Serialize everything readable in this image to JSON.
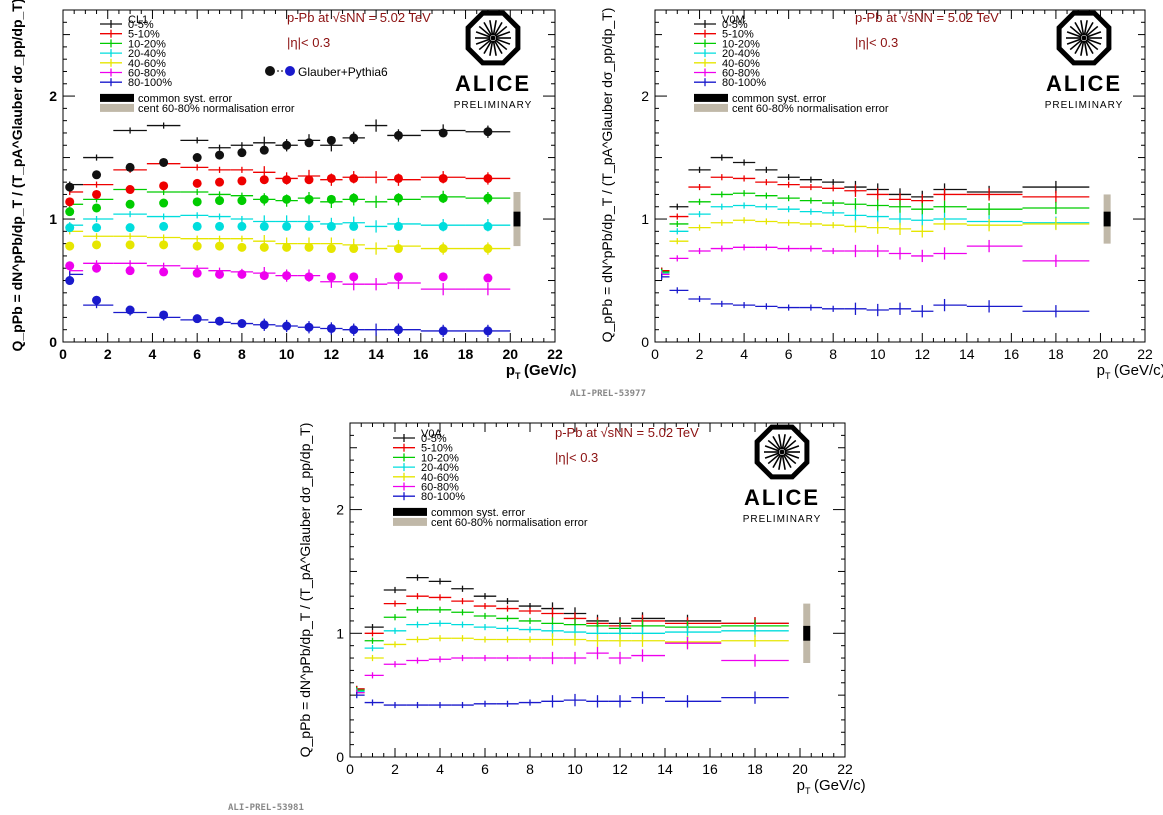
{
  "colors": {
    "0-5%": "#111111",
    "5-10%": "#ee0000",
    "10-20%": "#00cc00",
    "20-40%": "#00dddd",
    "40-60%": "#e6e600",
    "60-80%": "#ee00ee",
    "80-100%": "#1a1acc",
    "annot": "#8b1010",
    "syst_common": "#000000",
    "syst_norm": "#c0b8a8"
  },
  "prelim_ids": [
    "ALI-PREL-53977",
    "ALI-PREL-53981"
  ],
  "chart_data": [
    {
      "type": "scatter",
      "estimator": "CL1",
      "xlabel": "p_T (GeV/c)",
      "ylabel": "Q_pPb = dN^pPb/dp_T / (T_pA^Glauber dσ_pp/dp_T)",
      "xlim": [
        0,
        22
      ],
      "ylim": [
        0,
        2.7
      ],
      "xticks": [
        0,
        2,
        4,
        6,
        8,
        10,
        12,
        14,
        16,
        18,
        20,
        22
      ],
      "yticks": [
        0,
        1,
        2
      ],
      "annotations": [
        "p-Pb at √sNN = 5.02 TeV",
        "|η|< 0.3"
      ],
      "logo": {
        "text": "ALICE",
        "sub": "PRELIMINARY"
      },
      "glauber_label": "Glauber+Pythia6",
      "syst_labels": [
        "common syst. error",
        "cent 60-80% normalisation error"
      ],
      "syst_box": {
        "x": 20.3,
        "common": [
          0.94,
          1.06
        ],
        "norm": [
          0.78,
          1.22
        ]
      },
      "x": [
        0.3,
        1.5,
        3,
        4.5,
        6,
        7,
        8,
        9,
        10,
        11,
        12,
        13,
        14,
        15,
        17,
        19
      ],
      "series": [
        {
          "name": "0-5%",
          "values": [
            1.28,
            1.5,
            1.72,
            1.76,
            1.64,
            1.58,
            1.6,
            1.62,
            1.6,
            1.64,
            1.6,
            1.66,
            1.76,
            1.68,
            1.72,
            1.71
          ]
        },
        {
          "name": "5-10%",
          "values": [
            1.22,
            1.28,
            1.4,
            1.45,
            1.42,
            1.4,
            1.4,
            1.38,
            1.33,
            1.35,
            1.32,
            1.34,
            1.34,
            1.32,
            1.34,
            1.33
          ]
        },
        {
          "name": "10-20%",
          "values": [
            1.12,
            1.16,
            1.24,
            1.22,
            1.22,
            1.2,
            1.19,
            1.16,
            1.15,
            1.17,
            1.14,
            1.16,
            1.14,
            1.16,
            1.18,
            1.17
          ]
        },
        {
          "name": "20-40%",
          "values": [
            0.95,
            1.0,
            1.04,
            1.02,
            1.03,
            1.02,
            1.0,
            0.98,
            0.98,
            0.98,
            0.96,
            0.97,
            0.94,
            0.96,
            0.95,
            0.95
          ]
        },
        {
          "name": "40-60%",
          "values": [
            0.9,
            0.86,
            0.86,
            0.85,
            0.84,
            0.84,
            0.84,
            0.82,
            0.8,
            0.8,
            0.8,
            0.79,
            0.76,
            0.78,
            0.76,
            0.76
          ]
        },
        {
          "name": "60-80%",
          "values": [
            0.58,
            0.64,
            0.64,
            0.62,
            0.6,
            0.58,
            0.57,
            0.56,
            0.54,
            0.54,
            0.49,
            0.47,
            0.47,
            0.48,
            0.43,
            0.43
          ]
        },
        {
          "name": "80-100%",
          "values": [
            0.55,
            0.3,
            0.24,
            0.2,
            0.18,
            0.16,
            0.15,
            0.14,
            0.13,
            0.12,
            0.11,
            0.1,
            0.1,
            0.1,
            0.09,
            0.09
          ]
        }
      ],
      "glauber": {
        "x": [
          0.3,
          1.5,
          3,
          4.5,
          6,
          7,
          8,
          9,
          10,
          11,
          12,
          13,
          15,
          17,
          19
        ],
        "series": [
          {
            "name": "0-5%",
            "values": [
              1.26,
              1.36,
              1.42,
              1.46,
              1.5,
              1.52,
              1.54,
              1.56,
              1.6,
              1.62,
              1.64,
              1.66,
              1.68,
              1.7,
              1.71
            ]
          },
          {
            "name": "5-10%",
            "values": [
              1.14,
              1.2,
              1.24,
              1.27,
              1.29,
              1.3,
              1.31,
              1.32,
              1.32,
              1.32,
              1.33,
              1.33,
              1.33,
              1.33,
              1.33
            ]
          },
          {
            "name": "10-20%",
            "values": [
              1.06,
              1.09,
              1.12,
              1.13,
              1.14,
              1.15,
              1.15,
              1.16,
              1.16,
              1.16,
              1.16,
              1.17,
              1.17,
              1.17,
              1.17
            ]
          },
          {
            "name": "20-40%",
            "values": [
              0.93,
              0.93,
              0.93,
              0.94,
              0.94,
              0.94,
              0.94,
              0.94,
              0.94,
              0.94,
              0.94,
              0.94,
              0.94,
              0.94,
              0.94
            ]
          },
          {
            "name": "40-60%",
            "values": [
              0.78,
              0.79,
              0.79,
              0.79,
              0.78,
              0.78,
              0.77,
              0.77,
              0.77,
              0.77,
              0.76,
              0.76,
              0.76,
              0.76,
              0.76
            ]
          },
          {
            "name": "60-80%",
            "values": [
              0.62,
              0.6,
              0.58,
              0.57,
              0.56,
              0.55,
              0.55,
              0.54,
              0.54,
              0.53,
              0.53,
              0.53,
              0.53,
              0.53,
              0.52
            ]
          },
          {
            "name": "80-100%",
            "values": [
              0.5,
              0.34,
              0.26,
              0.22,
              0.19,
              0.17,
              0.15,
              0.14,
              0.13,
              0.12,
              0.11,
              0.1,
              0.1,
              0.09,
              0.09
            ]
          }
        ]
      }
    },
    {
      "type": "scatter",
      "estimator": "V0M",
      "xlabel": "p_T (GeV/c)",
      "ylabel": "Q_pPb = dN^pPb/dp_T / (T_pA^Glauber dσ_pp/dp_T)",
      "xlim": [
        0,
        22
      ],
      "ylim": [
        0,
        2.7
      ],
      "xticks": [
        0,
        2,
        4,
        6,
        8,
        10,
        12,
        14,
        16,
        18,
        20,
        22
      ],
      "yticks": [
        0,
        1,
        2
      ],
      "annotations": [
        "p-Pb at √sNN = 5.02 TeV",
        "|η|< 0.3"
      ],
      "logo": {
        "text": "ALICE",
        "sub": "PRELIMINARY"
      },
      "syst_labels": [
        "common syst. error",
        "cent 60-80% normalisation error"
      ],
      "syst_box": {
        "x": 20.3,
        "common": [
          0.94,
          1.06
        ],
        "norm": [
          0.8,
          1.2
        ]
      },
      "x": [
        0.3,
        1,
        2,
        3,
        4,
        5,
        6,
        7,
        8,
        9,
        10,
        11,
        12,
        13,
        15,
        18
      ],
      "series": [
        {
          "name": "0-5%",
          "values": [
            0.58,
            1.1,
            1.4,
            1.5,
            1.46,
            1.4,
            1.34,
            1.32,
            1.3,
            1.26,
            1.24,
            1.2,
            1.18,
            1.24,
            1.22,
            1.26
          ]
        },
        {
          "name": "5-10%",
          "values": [
            0.58,
            1.02,
            1.26,
            1.34,
            1.33,
            1.3,
            1.28,
            1.26,
            1.25,
            1.23,
            1.2,
            1.16,
            1.15,
            1.2,
            1.2,
            1.18
          ]
        },
        {
          "name": "10-20%",
          "values": [
            0.57,
            0.96,
            1.14,
            1.2,
            1.21,
            1.19,
            1.17,
            1.15,
            1.13,
            1.12,
            1.11,
            1.1,
            1.08,
            1.1,
            1.08,
            1.09
          ]
        },
        {
          "name": "20-40%",
          "values": [
            0.56,
            0.9,
            1.04,
            1.1,
            1.11,
            1.1,
            1.08,
            1.06,
            1.05,
            1.03,
            1.02,
            1.0,
            0.99,
            1.0,
            0.98,
            0.97
          ]
        },
        {
          "name": "40-60%",
          "values": [
            0.55,
            0.82,
            0.93,
            0.97,
            0.99,
            0.98,
            0.97,
            0.96,
            0.95,
            0.94,
            0.93,
            0.92,
            0.9,
            0.96,
            0.95,
            0.96
          ]
        },
        {
          "name": "60-80%",
          "values": [
            0.55,
            0.68,
            0.74,
            0.76,
            0.77,
            0.77,
            0.76,
            0.76,
            0.74,
            0.74,
            0.74,
            0.72,
            0.7,
            0.72,
            0.78,
            0.66
          ]
        },
        {
          "name": "80-100%",
          "values": [
            0.53,
            0.42,
            0.35,
            0.31,
            0.3,
            0.29,
            0.28,
            0.28,
            0.27,
            0.27,
            0.26,
            0.27,
            0.25,
            0.3,
            0.29,
            0.25
          ]
        }
      ]
    },
    {
      "type": "scatter",
      "estimator": "V0A",
      "xlabel": "p_T (GeV/c)",
      "ylabel": "Q_pPb = dN^pPb/dp_T / (T_pA^Glauber dσ_pp/dp_T)",
      "xlim": [
        0,
        22
      ],
      "ylim": [
        0,
        2.7
      ],
      "xticks": [
        0,
        2,
        4,
        6,
        8,
        10,
        12,
        14,
        16,
        18,
        20,
        22
      ],
      "yticks": [
        0,
        1,
        2
      ],
      "annotations": [
        "p-Pb at √sNN = 5.02 TeV",
        "|η|< 0.3"
      ],
      "logo": {
        "text": "ALICE",
        "sub": "PRELIMINARY"
      },
      "syst_labels": [
        "common syst. error",
        "cent 60-80% normalisation error"
      ],
      "syst_box": {
        "x": 20.3,
        "common": [
          0.94,
          1.06
        ],
        "norm": [
          0.76,
          1.24
        ]
      },
      "x": [
        0.3,
        1,
        2,
        3,
        4,
        5,
        6,
        7,
        8,
        9,
        10,
        11,
        12,
        13,
        15,
        18
      ],
      "series": [
        {
          "name": "0-5%",
          "values": [
            0.55,
            1.05,
            1.35,
            1.45,
            1.42,
            1.36,
            1.3,
            1.26,
            1.22,
            1.2,
            1.16,
            1.1,
            1.08,
            1.12,
            1.1,
            1.08
          ]
        },
        {
          "name": "5-10%",
          "values": [
            0.55,
            1.0,
            1.24,
            1.3,
            1.29,
            1.26,
            1.22,
            1.2,
            1.18,
            1.16,
            1.12,
            1.08,
            1.06,
            1.1,
            1.08,
            1.08
          ]
        },
        {
          "name": "10-20%",
          "values": [
            0.54,
            0.94,
            1.13,
            1.19,
            1.19,
            1.17,
            1.14,
            1.12,
            1.1,
            1.08,
            1.07,
            1.06,
            1.04,
            1.06,
            1.05,
            1.06
          ]
        },
        {
          "name": "20-40%",
          "values": [
            0.53,
            0.88,
            1.02,
            1.07,
            1.08,
            1.07,
            1.05,
            1.04,
            1.03,
            1.02,
            1.01,
            1.0,
            1.0,
            1.0,
            1.01,
            1.02
          ]
        },
        {
          "name": "40-60%",
          "values": [
            0.52,
            0.8,
            0.91,
            0.95,
            0.96,
            0.96,
            0.95,
            0.95,
            0.95,
            0.95,
            0.95,
            0.94,
            0.94,
            0.94,
            0.93,
            0.94
          ]
        },
        {
          "name": "60-80%",
          "values": [
            0.52,
            0.66,
            0.75,
            0.78,
            0.79,
            0.8,
            0.8,
            0.8,
            0.8,
            0.8,
            0.8,
            0.84,
            0.8,
            0.82,
            0.92,
            0.78
          ]
        },
        {
          "name": "80-100%",
          "values": [
            0.5,
            0.44,
            0.42,
            0.42,
            0.42,
            0.42,
            0.43,
            0.43,
            0.44,
            0.45,
            0.46,
            0.45,
            0.45,
            0.48,
            0.45,
            0.48
          ]
        }
      ]
    }
  ]
}
